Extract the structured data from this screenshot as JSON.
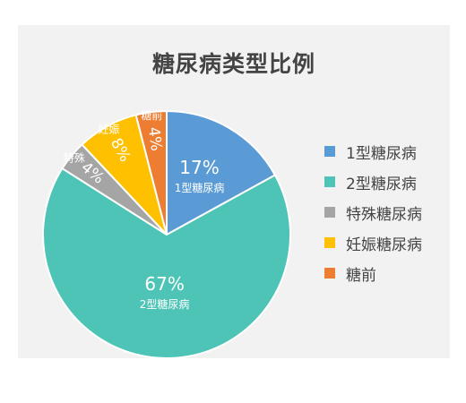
{
  "chart_data": {
    "type": "pie",
    "title": "糖尿病类型比例",
    "legend_position": "right",
    "slices": [
      {
        "name": "1型糖尿病",
        "value": 17,
        "label": "17%",
        "sublabel": "1型糖尿病",
        "color": "#5b9bd5"
      },
      {
        "name": "2型糖尿病",
        "value": 67,
        "label": "67%",
        "sublabel": "2型糖尿病",
        "color": "#4ec4b6"
      },
      {
        "name": "特殊糖尿病",
        "value": 4,
        "label": "4%",
        "sublabel": "特殊",
        "color": "#a5a5a5"
      },
      {
        "name": "妊娠糖尿病",
        "value": 8,
        "label": "8%",
        "sublabel": "妊娠",
        "color": "#ffc000"
      },
      {
        "name": "糖前",
        "value": 4,
        "label": "4%",
        "sublabel": "糖前",
        "color": "#ed7d31"
      }
    ]
  }
}
